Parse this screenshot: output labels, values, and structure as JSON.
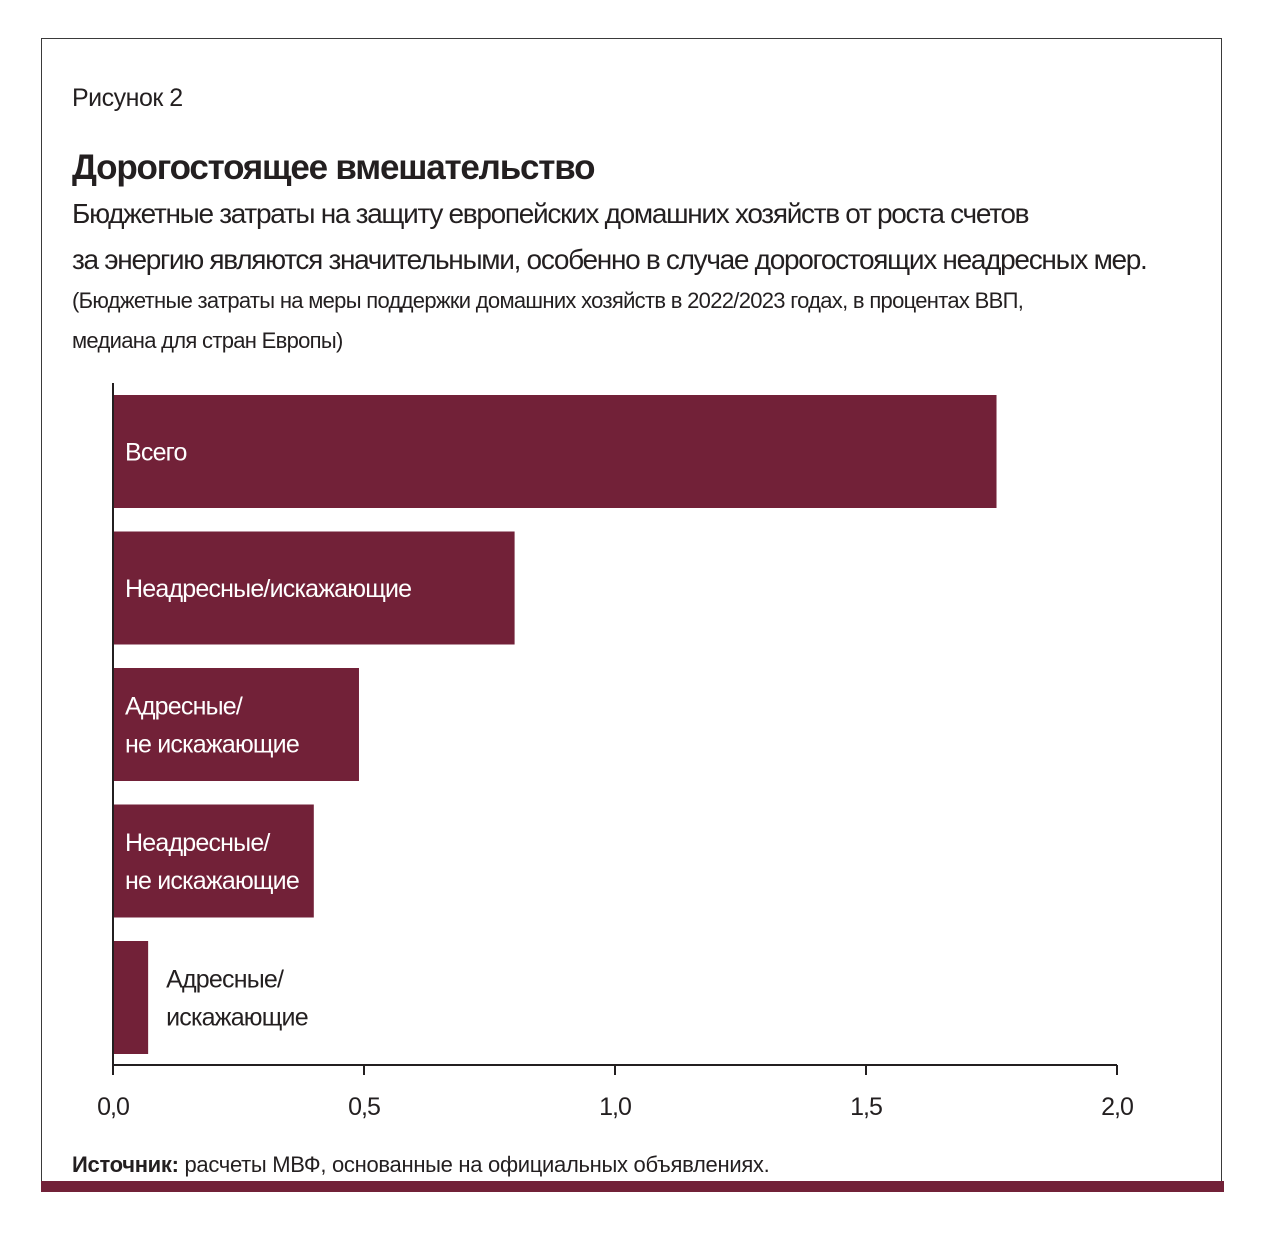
{
  "figure_label": "Рисунок 2",
  "title": "Дорогостоящее вмешательство",
  "subtitle_lines": [
    "Бюджетные затраты на защиту европейских домашних хозяйств от роста счетов",
    "за энергию являются значительными, особенно в случае дорогостоящих неадресных мер."
  ],
  "note_lines": [
    "(Бюджетные затраты на меры поддержки домашних хозяйств в 2022/2023 годах, в процентах ВВП,",
    "медиана для стран Европы)"
  ],
  "source": {
    "label": "Источник:",
    "text": " расчеты МВФ, основанные на официальных объявлениях."
  },
  "colors": {
    "bar": "#722138",
    "band": "#722138"
  },
  "chart_data": {
    "type": "bar",
    "orientation": "horizontal",
    "categories": [
      [
        "Всего"
      ],
      [
        "Неадресные/искажающие"
      ],
      [
        "Адресные/",
        "не искажающие"
      ],
      [
        "Неадресные/",
        "не искажающие"
      ],
      [
        "Адресные/",
        "искажающие"
      ]
    ],
    "values": [
      1.76,
      0.8,
      0.49,
      0.4,
      0.07
    ],
    "xlim": [
      0,
      2.0
    ],
    "xticks": [
      0,
      0.5,
      1.0,
      1.5,
      2.0
    ],
    "xtick_labels": [
      "0,0",
      "0,5",
      "1,0",
      "1,5",
      "2,0"
    ],
    "xlabel": "",
    "ylabel": "",
    "grid": false
  }
}
